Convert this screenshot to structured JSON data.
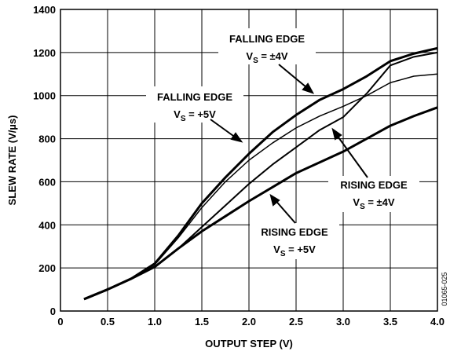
{
  "chart_data": {
    "type": "line",
    "xlabel": "OUTPUT STEP (V)",
    "ylabel": "SLEW RATE (V/µs)",
    "x": [
      0.25,
      0.5,
      0.75,
      1.0,
      1.25,
      1.5,
      1.75,
      2.0,
      2.25,
      2.5,
      2.75,
      3.0,
      3.25,
      3.5,
      3.75,
      4.0
    ],
    "series": [
      {
        "color": "#000000",
        "width": 3,
        "values": [
          55,
          100,
          150,
          220,
          350,
          500,
          620,
          730,
          830,
          910,
          980,
          1030,
          1090,
          1160,
          1195,
          1220
        ]
      },
      {
        "color": "#000000",
        "width": 1.5,
        "values": [
          55,
          100,
          150,
          215,
          340,
          480,
          600,
          700,
          780,
          850,
          905,
          950,
          1000,
          1060,
          1090,
          1100
        ]
      },
      {
        "color": "#000000",
        "width": 2,
        "values": [
          55,
          100,
          150,
          205,
          290,
          390,
          490,
          590,
          680,
          760,
          840,
          900,
          1010,
          1140,
          1180,
          1200
        ]
      },
      {
        "color": "#000000",
        "width": 3,
        "values": [
          55,
          100,
          150,
          205,
          290,
          370,
          440,
          510,
          575,
          640,
          690,
          740,
          800,
          860,
          905,
          945
        ]
      }
    ],
    "xlim": [
      0,
      4.0
    ],
    "xticks": [
      0,
      0.5,
      {
        "value": 1.0,
        "label": "1.0"
      },
      1.5,
      {
        "value": 2.0,
        "label": "2.0"
      },
      2.5,
      {
        "value": 3.0,
        "label": "3.0"
      },
      3.5,
      {
        "value": 4.0,
        "label": "4.0"
      }
    ],
    "ylim": [
      0,
      1400
    ],
    "yticks": [
      0,
      200,
      400,
      600,
      800,
      1000,
      1200,
      1400
    ],
    "grid": true,
    "annotations": [
      {
        "label": "FALLING EDGE",
        "v": "V",
        "sub": "S",
        "cond": " = ±4V"
      },
      {
        "label": "FALLING EDGE",
        "v": "V",
        "sub": "S",
        "cond": " = +5V"
      },
      {
        "label": "RISING EDGE",
        "v": "V",
        "sub": "S",
        "cond": " = ±4V"
      },
      {
        "label": "RISING EDGE",
        "v": "V",
        "sub": "S",
        "cond": " = +5V"
      }
    ],
    "code": "01065-025"
  }
}
